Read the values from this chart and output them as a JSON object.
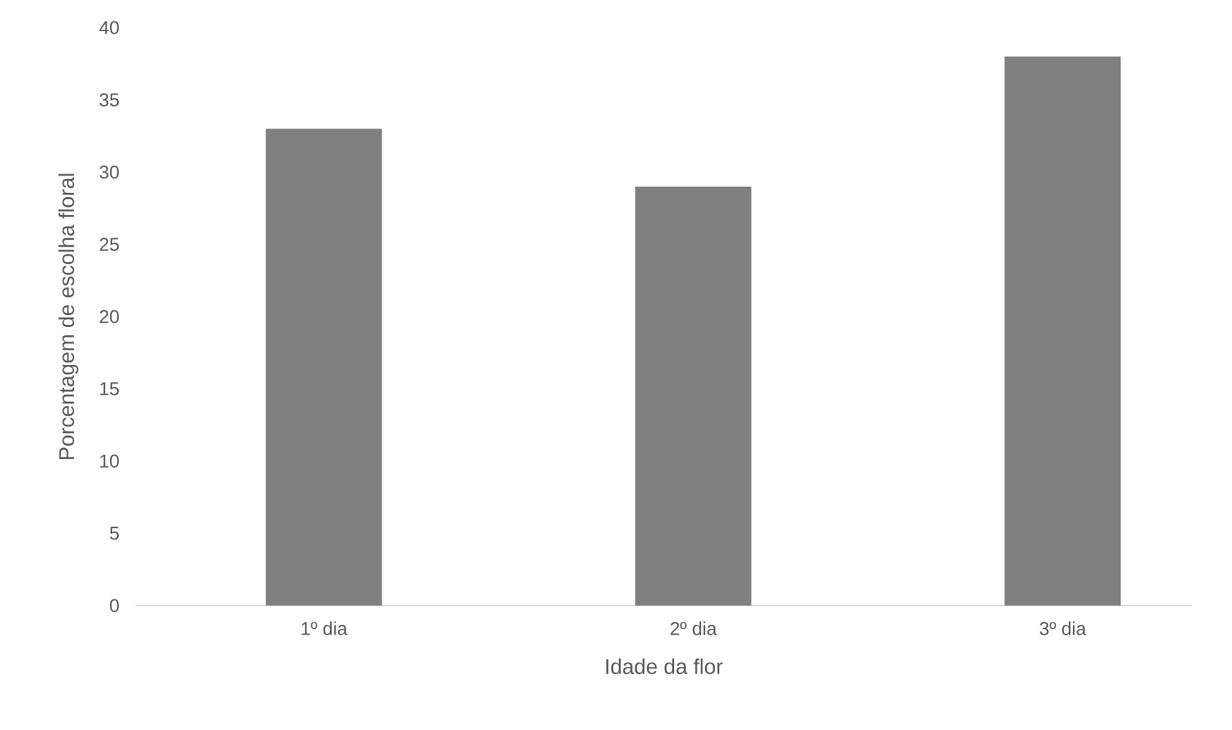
{
  "chart_data": {
    "type": "bar",
    "xlabel": "Idade da flor",
    "ylabel": "Porcentagem de escolha floral",
    "categories": [
      "1º dia",
      "2º dia",
      "3º dia"
    ],
    "values": [
      33,
      29,
      38
    ],
    "color": "#808080",
    "ylim": [
      0,
      40
    ],
    "yticks": [
      0,
      5,
      10,
      15,
      20,
      25,
      30,
      35,
      40
    ],
    "grid": false
  }
}
